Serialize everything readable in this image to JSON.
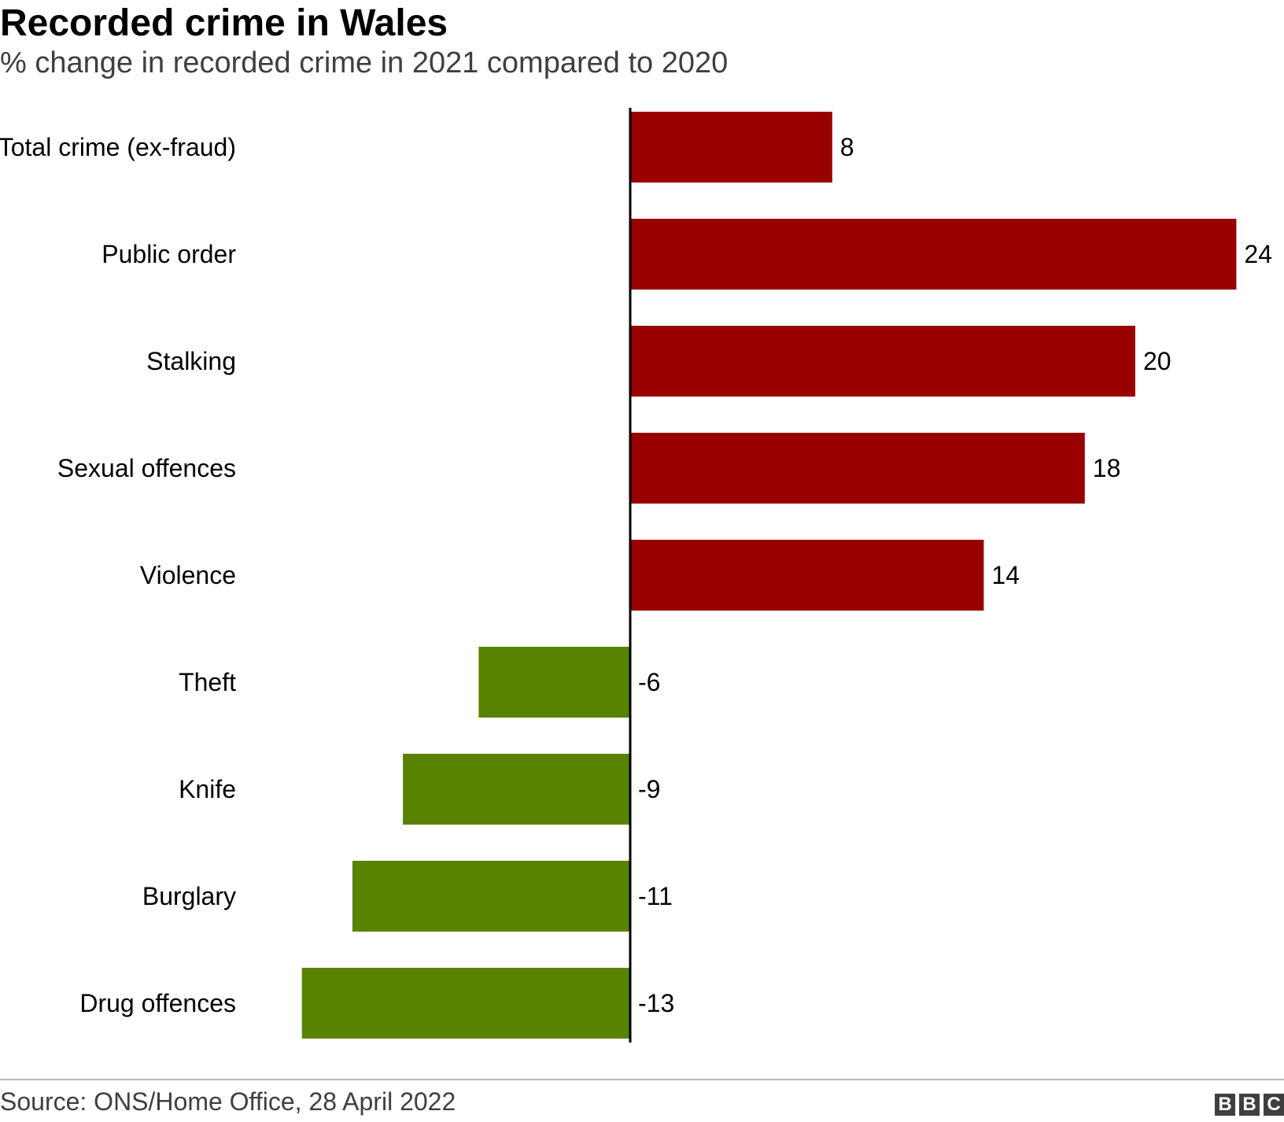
{
  "header": {
    "title": "Recorded crime in Wales",
    "subtitle": "% change in recorded crime in 2021 compared to 2020"
  },
  "footer": {
    "source": "Source: ONS/Home Office, 28 April 2022",
    "logo_text": "BBC"
  },
  "colors": {
    "increase": "#990000",
    "decrease": "#588300",
    "axis": "#000000"
  },
  "chart_data": {
    "type": "bar",
    "orientation": "horizontal",
    "categories": [
      "Total crime (ex-fraud)",
      "Public order",
      "Stalking",
      "Sexual offences",
      "Violence",
      "Theft",
      "Knife",
      "Burglary",
      "Drug offences"
    ],
    "values": [
      8,
      24,
      20,
      18,
      14,
      -6,
      -9,
      -11,
      -13
    ],
    "data_labels": [
      "8",
      "24",
      "20",
      "18",
      "14",
      "-6",
      "-9",
      "-11",
      "-13"
    ],
    "xlim": [
      -25,
      25
    ],
    "grid": false,
    "legend": "none"
  }
}
